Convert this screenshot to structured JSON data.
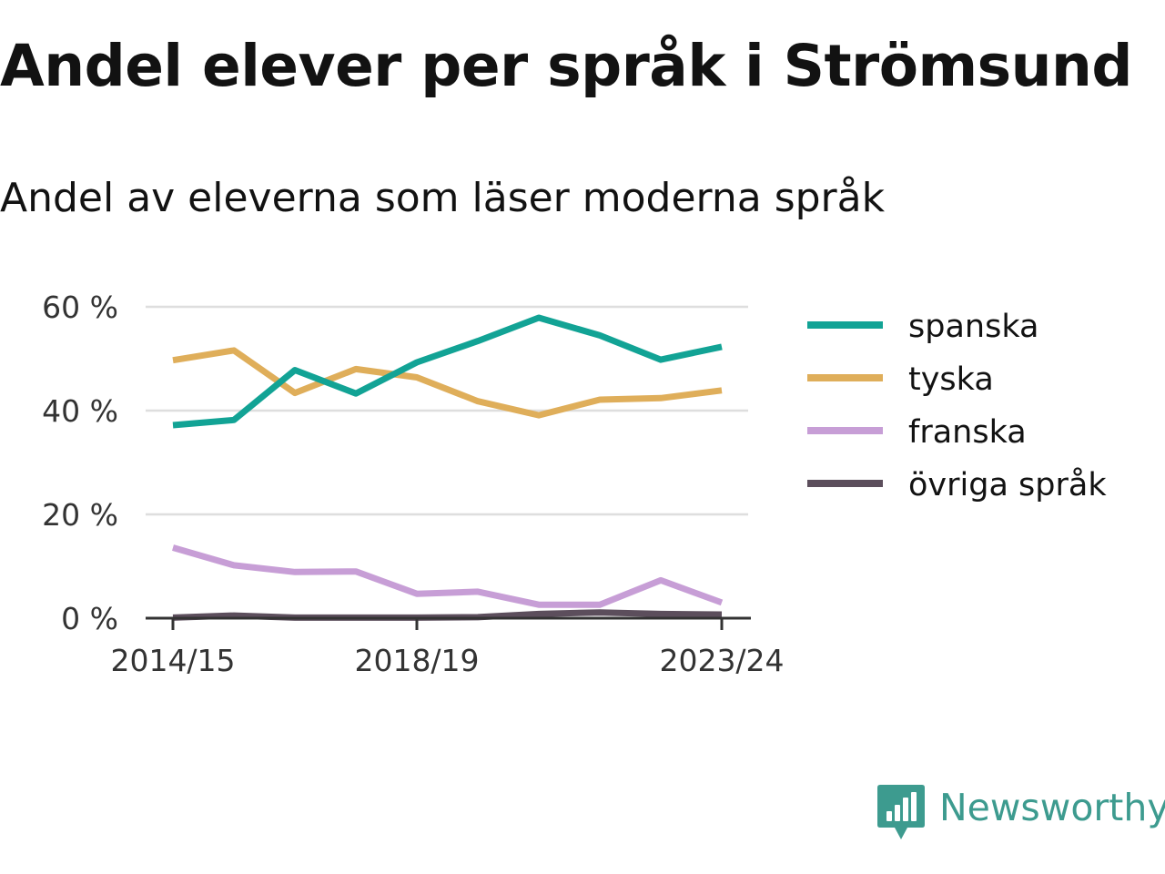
{
  "header": {
    "title": "Andel elever per språk i Strömsund",
    "subtitle": "Andel av eleverna som läser moderna språk"
  },
  "brand": {
    "name": "Newsworthy",
    "color": "#3d9b8f",
    "icon": "newsworthy-logo-icon"
  },
  "chart_data": {
    "type": "line",
    "title": "Andel elever per språk i Strömsund",
    "subtitle": "Andel av eleverna som läser moderna språk",
    "x": [
      "2014/15",
      "2015/16",
      "2016/17",
      "2017/18",
      "2018/19",
      "2019/20",
      "2020/21",
      "2021/22",
      "2022/23",
      "2023/24"
    ],
    "x_tick_labels": [
      "2014/15",
      "2018/19",
      "2023/24"
    ],
    "y_ticks": [
      0,
      20,
      40,
      60
    ],
    "y_tick_labels": [
      "0 %",
      "20 %",
      "40 %",
      "60 %"
    ],
    "ylim": [
      0,
      60
    ],
    "grid": true,
    "legend_position": "right",
    "series": [
      {
        "name": "spanska",
        "color": "#12a395",
        "values": [
          37.2,
          38.2,
          47.8,
          43.3,
          49.3,
          53.4,
          57.9,
          54.5,
          49.8,
          52.3
        ]
      },
      {
        "name": "tyska",
        "color": "#dfae5a",
        "values": [
          49.7,
          51.6,
          43.4,
          48.0,
          46.4,
          41.8,
          39.1,
          42.1,
          42.4,
          43.9
        ]
      },
      {
        "name": "franska",
        "color": "#c79ed6",
        "values": [
          13.6,
          10.2,
          8.9,
          9.0,
          4.7,
          5.1,
          2.6,
          2.6,
          7.3,
          3.0
        ]
      },
      {
        "name": "övriga språk",
        "color": "#5c4e5c",
        "values": [
          0.1,
          0.5,
          0.1,
          0.1,
          0.1,
          0.2,
          0.8,
          1.1,
          0.8,
          0.7
        ]
      }
    ]
  }
}
